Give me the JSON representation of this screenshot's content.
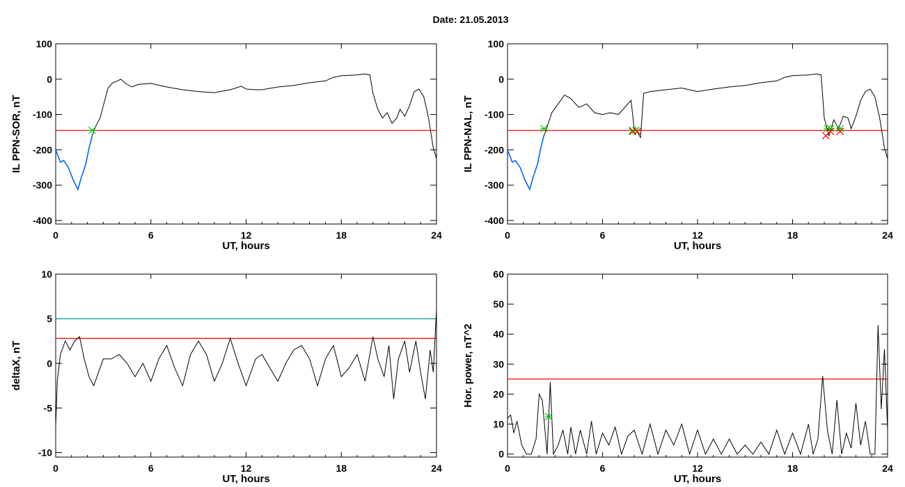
{
  "title": "Date:  21.05.2013",
  "chart_data": [
    {
      "type": "line",
      "panel": "top-left",
      "ylabel": "IL PPN-SOR, nT",
      "xlabel": "UT, hours",
      "xlim": [
        0,
        24
      ],
      "ylim": [
        -410,
        100
      ],
      "xticks": [
        0,
        6,
        12,
        18,
        24
      ],
      "yticks": [
        -400,
        -300,
        -200,
        -100,
        0,
        100
      ],
      "threshold": {
        "value": -145,
        "color": "#ff0000"
      },
      "series": [
        {
          "color": "#000000",
          "x": [
            0,
            0.3,
            0.5,
            0.8,
            1.1,
            1.4,
            1.6,
            1.9,
            2.1,
            2.3,
            2.5,
            2.8,
            3.0,
            3.3,
            3.6,
            3.9,
            4.1,
            4.4,
            4.8,
            5.2,
            6.0,
            7.0,
            8.0,
            9.0,
            10.0,
            11.0,
            11.7,
            12.0,
            12.6,
            13.0,
            14.0,
            15.0,
            16.0,
            17.0,
            17.5,
            18.0,
            19.0,
            19.5,
            19.8,
            20.0,
            20.3,
            20.6,
            20.9,
            21.2,
            21.5,
            21.7,
            22.0,
            22.3,
            22.6,
            22.9,
            23.2,
            23.5,
            23.8,
            24.0
          ],
          "y": [
            -200,
            -235,
            -230,
            -250,
            -285,
            -312,
            -280,
            -240,
            -195,
            -160,
            -135,
            -110,
            -75,
            -25,
            -10,
            -5,
            0,
            -12,
            -22,
            -15,
            -12,
            -22,
            -30,
            -35,
            -38,
            -30,
            -20,
            -28,
            -30,
            -30,
            -22,
            -18,
            -10,
            -5,
            5,
            10,
            12,
            15,
            12,
            -40,
            -85,
            -110,
            -95,
            -125,
            -110,
            -85,
            -105,
            -75,
            -35,
            -28,
            -50,
            -110,
            -195,
            -225
          ]
        }
      ],
      "highlight": {
        "color": "#0066ff",
        "x_range": [
          0,
          2.3
        ]
      },
      "markers": [
        {
          "x": 2.3,
          "y": -145,
          "symbol": "asterisk",
          "color": "#00c800"
        }
      ]
    },
    {
      "type": "line",
      "panel": "top-right",
      "ylabel": "IL PPN-NAL, nT",
      "xlabel": "UT, hours",
      "xlim": [
        0,
        24
      ],
      "ylim": [
        -410,
        100
      ],
      "xticks": [
        0,
        6,
        12,
        18,
        24
      ],
      "yticks": [
        -400,
        -300,
        -200,
        -100,
        0,
        100
      ],
      "threshold": {
        "value": -145,
        "color": "#ff0000"
      },
      "series": [
        {
          "color": "#000000",
          "x": [
            0,
            0.3,
            0.5,
            0.8,
            1.1,
            1.4,
            1.6,
            1.9,
            2.1,
            2.3,
            2.5,
            2.8,
            3.2,
            3.6,
            4.0,
            4.5,
            5.0,
            5.5,
            6.0,
            6.5,
            7.0,
            7.5,
            7.8,
            8.0,
            8.2,
            8.4,
            8.6,
            9.0,
            10.0,
            11.0,
            12.0,
            13.0,
            14.0,
            15.0,
            16.0,
            17.0,
            17.5,
            18.0,
            19.0,
            19.5,
            19.8,
            20.0,
            20.3,
            20.6,
            20.9,
            21.2,
            21.5,
            21.7,
            22.0,
            22.3,
            22.6,
            22.9,
            23.2,
            23.5,
            23.8,
            24.0
          ],
          "y": [
            -200,
            -235,
            -230,
            -250,
            -285,
            -312,
            -280,
            -240,
            -195,
            -160,
            -135,
            -95,
            -70,
            -45,
            -55,
            -80,
            -70,
            -95,
            -100,
            -95,
            -100,
            -75,
            -60,
            -140,
            -150,
            -165,
            -40,
            -35,
            -30,
            -25,
            -35,
            -28,
            -22,
            -18,
            -10,
            -5,
            5,
            10,
            12,
            15,
            12,
            -110,
            -160,
            -115,
            -140,
            -105,
            -110,
            -140,
            -105,
            -60,
            -35,
            -28,
            -50,
            -110,
            -195,
            -225
          ]
        }
      ],
      "highlight": {
        "color": "#0066ff",
        "x_range": [
          0,
          2.3
        ]
      },
      "markers": [
        {
          "x": 2.3,
          "y": -140,
          "symbol": "asterisk",
          "color": "#00c800"
        },
        {
          "x": 7.9,
          "y": -145,
          "symbol": "asterisk",
          "color": "#00c800"
        },
        {
          "x": 8.1,
          "y": -145,
          "symbol": "asterisk",
          "color": "#00c800"
        },
        {
          "x": 20.2,
          "y": -140,
          "symbol": "asterisk",
          "color": "#00c800"
        },
        {
          "x": 20.4,
          "y": -140,
          "symbol": "asterisk",
          "color": "#00c800"
        },
        {
          "x": 21.0,
          "y": -140,
          "symbol": "asterisk",
          "color": "#00c800"
        },
        {
          "x": 7.9,
          "y": -148,
          "symbol": "cross",
          "color": "#ff0000"
        },
        {
          "x": 8.2,
          "y": -148,
          "symbol": "cross",
          "color": "#ff0000"
        },
        {
          "x": 20.1,
          "y": -160,
          "symbol": "cross",
          "color": "#ff0000"
        },
        {
          "x": 20.4,
          "y": -148,
          "symbol": "cross",
          "color": "#ff0000"
        },
        {
          "x": 21.0,
          "y": -148,
          "symbol": "cross",
          "color": "#ff0000"
        }
      ]
    },
    {
      "type": "line",
      "panel": "bottom-left",
      "ylabel": "deltaX, nT",
      "xlabel": "UT, hours",
      "xlim": [
        0,
        24
      ],
      "ylim": [
        -10.5,
        10
      ],
      "xticks": [
        0,
        6,
        12,
        18,
        24
      ],
      "yticks": [
        -10,
        -5,
        0,
        5,
        10
      ],
      "threshold": {
        "value": 2.8,
        "color": "#ff0000"
      },
      "threshold2": {
        "value": 5,
        "color": "#009999"
      },
      "series": [
        {
          "color": "#000000",
          "x": [
            0,
            0.1,
            0.3,
            0.6,
            0.9,
            1.2,
            1.5,
            1.8,
            2.1,
            2.4,
            2.7,
            3.0,
            3.5,
            4.0,
            4.5,
            5.0,
            5.5,
            6.0,
            6.5,
            7.0,
            7.5,
            8.0,
            8.5,
            9.0,
            9.5,
            10.0,
            10.5,
            11.0,
            11.5,
            12.0,
            12.3,
            12.6,
            13.0,
            13.5,
            14.0,
            14.5,
            15.0,
            15.5,
            16.0,
            16.5,
            17.0,
            17.5,
            18.0,
            18.5,
            19.0,
            19.5,
            20.0,
            20.3,
            20.7,
            21.0,
            21.3,
            21.6,
            22.0,
            22.3,
            22.7,
            23.0,
            23.3,
            23.6,
            23.8,
            24.0
          ],
          "y": [
            -7,
            -2,
            1,
            2.5,
            1.5,
            2.5,
            3.0,
            0.5,
            -1.5,
            -2.5,
            -1.0,
            0.5,
            0.5,
            1.0,
            0.0,
            -1.5,
            0.0,
            -2.0,
            0.5,
            2.0,
            -0.5,
            -2.5,
            1.0,
            2.5,
            1.0,
            -2.0,
            0.0,
            2.8,
            0.0,
            -2.5,
            -1.0,
            0.5,
            1.0,
            -0.5,
            -2.0,
            0.0,
            1.5,
            2.0,
            0.5,
            -2.5,
            0.5,
            2.0,
            -1.5,
            -0.5,
            1.0,
            -2.0,
            3.0,
            0.5,
            -1.5,
            2.0,
            -4.0,
            0.5,
            2.5,
            -1.0,
            2.5,
            -1.0,
            -4.0,
            1.5,
            -1.0,
            6.0
          ]
        }
      ]
    },
    {
      "type": "line",
      "panel": "bottom-right",
      "ylabel": "Hor. power, nT^2",
      "xlabel": "UT, hours",
      "xlim": [
        0,
        24
      ],
      "ylim": [
        -1,
        60
      ],
      "xticks": [
        0,
        6,
        12,
        18,
        24
      ],
      "yticks": [
        0,
        10,
        20,
        30,
        40,
        50,
        60
      ],
      "threshold": {
        "value": 25,
        "color": "#ff0000"
      },
      "series": [
        {
          "color": "#000000",
          "x": [
            0,
            0.2,
            0.4,
            0.6,
            0.9,
            1.2,
            1.5,
            1.8,
            2.0,
            2.2,
            2.5,
            2.7,
            2.9,
            3.2,
            3.5,
            3.8,
            4.0,
            4.3,
            4.6,
            5.0,
            5.3,
            5.6,
            6.0,
            6.4,
            6.8,
            7.2,
            7.6,
            8.0,
            8.5,
            9.0,
            9.5,
            10.0,
            10.5,
            11.0,
            11.5,
            12.0,
            12.5,
            13.0,
            13.5,
            14.0,
            14.5,
            15.0,
            15.5,
            16.0,
            16.5,
            17.0,
            17.5,
            18.0,
            18.5,
            19.0,
            19.3,
            19.6,
            19.9,
            20.2,
            20.5,
            20.8,
            21.1,
            21.4,
            21.7,
            22.0,
            22.3,
            22.6,
            22.9,
            23.2,
            23.4,
            23.6,
            23.8,
            24.0
          ],
          "y": [
            12,
            13,
            7,
            11,
            3,
            0,
            0,
            5,
            20,
            18,
            0,
            24,
            0,
            3,
            8,
            0,
            9,
            0,
            8,
            0,
            11,
            0,
            7,
            3,
            9,
            0,
            6,
            8,
            0,
            10,
            0,
            8,
            3,
            10,
            0,
            8,
            0,
            5,
            0,
            5,
            0,
            3,
            0,
            4,
            0,
            8,
            0,
            7,
            0,
            10,
            0,
            5,
            26,
            8,
            0,
            18,
            0,
            7,
            2,
            17,
            3,
            11,
            0,
            0,
            43,
            15,
            35,
            8
          ]
        }
      ],
      "markers": [
        {
          "x": 2.6,
          "y": 12.5,
          "symbol": "asterisk",
          "color": "#00c800"
        }
      ]
    }
  ]
}
